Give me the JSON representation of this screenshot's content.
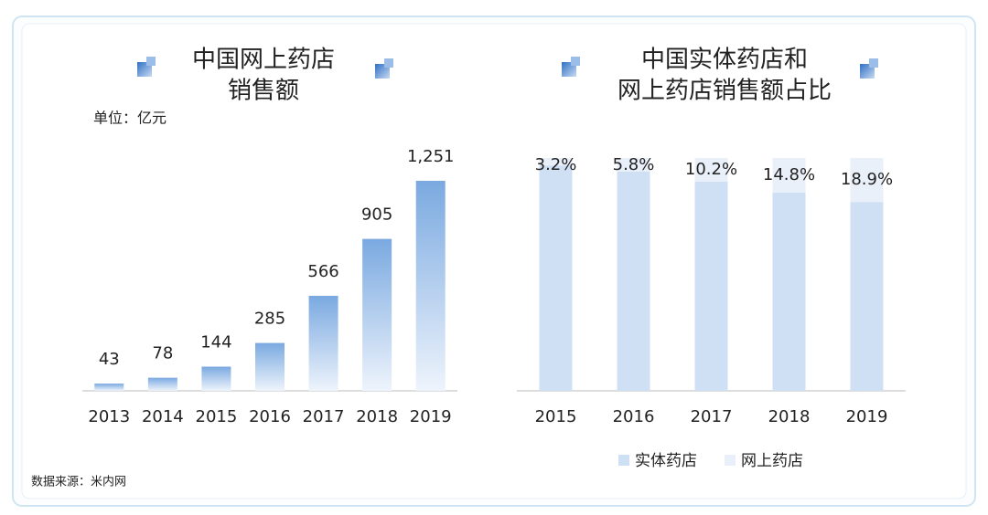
{
  "chart_data": [
    {
      "type": "bar",
      "title": [
        "中国网上药店",
        "销售额"
      ],
      "unit": "单位：亿元",
      "categories": [
        "2013",
        "2014",
        "2015",
        "2016",
        "2017",
        "2018",
        "2019"
      ],
      "values": [
        43,
        78,
        144,
        285,
        566,
        905,
        1251
      ],
      "value_labels": [
        "43",
        "78",
        "144",
        "285",
        "566",
        "905",
        "1,251"
      ],
      "color": "#7aa9e0"
    },
    {
      "type": "stacked_bar",
      "title": [
        "中国实体药店和",
        "网上药店销售额占比"
      ],
      "categories": [
        "2015",
        "2016",
        "2017",
        "2018",
        "2019"
      ],
      "series": [
        {
          "name": "实体药店",
          "color": "#cfe0f4",
          "values": [
            96.8,
            94.2,
            89.8,
            85.2,
            81.1
          ]
        },
        {
          "name": "网上药店",
          "color": "#e9f0fa",
          "values": [
            3.2,
            5.8,
            10.2,
            14.8,
            18.9
          ],
          "value_labels": [
            "3.2%",
            "5.8%",
            "10.2%",
            "14.8%",
            "18.9%"
          ]
        }
      ]
    }
  ],
  "source": "数据来源：米内网"
}
